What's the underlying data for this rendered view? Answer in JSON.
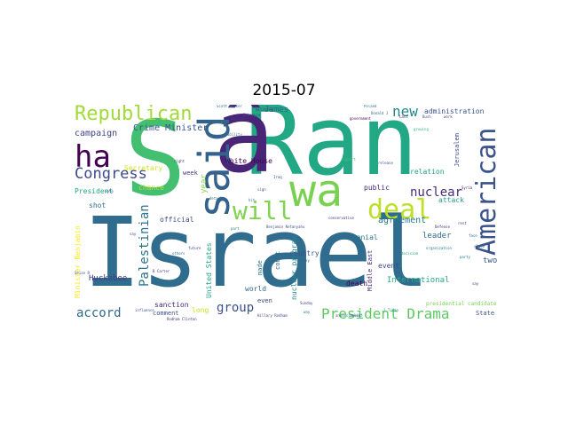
{
  "title": "2015-07",
  "words": [
    {
      "text": "Israel",
      "color": "#2f6c8e"
    },
    {
      "text": "Ran",
      "color": "#22a884"
    },
    {
      "text": "S",
      "color": "#43bf71"
    },
    {
      "text": "â",
      "color": "#482576"
    },
    {
      "text": "said",
      "color": "#33628d"
    },
    {
      "text": "wa",
      "color": "#7ad151"
    },
    {
      "text": "deal",
      "color": "#bddf26"
    },
    {
      "text": "American",
      "color": "#3b528b"
    },
    {
      "text": "will",
      "color": "#7fd34e"
    },
    {
      "text": "ha",
      "color": "#440154"
    },
    {
      "text": "Republican",
      "color": "#a2da37"
    },
    {
      "text": "Congress",
      "color": "#3e4a89"
    },
    {
      "text": "Palestinian",
      "color": "#2c728e"
    },
    {
      "text": "President Drama",
      "color": "#5ec962"
    },
    {
      "text": "accord",
      "color": "#31688e"
    },
    {
      "text": "group",
      "color": "#3b528b"
    },
    {
      "text": "nuclear",
      "color": "#472d7b"
    },
    {
      "text": "new",
      "color": "#24868e"
    },
    {
      "text": "agreement",
      "color": "#2a788e"
    },
    {
      "text": "Crime Minister",
      "color": "#3b528b"
    },
    {
      "text": "campaign",
      "color": "#414487"
    },
    {
      "text": "Secretary",
      "color": "#d2e21b"
    },
    {
      "text": "President",
      "color": "#20a386"
    },
    {
      "text": "James",
      "color": "#31688e"
    },
    {
      "text": "White House",
      "color": "#440154"
    },
    {
      "text": "administration",
      "color": "#3b528b"
    },
    {
      "text": "relation",
      "color": "#1fa188"
    },
    {
      "text": "Jerusalem",
      "color": "#3e4989"
    },
    {
      "text": "public",
      "color": "#482878"
    },
    {
      "text": "attack",
      "color": "#1f9e89"
    },
    {
      "text": "Cranial",
      "color": "#2c728e"
    },
    {
      "text": "leader",
      "color": "#31688e"
    },
    {
      "text": "International",
      "color": "#25ab82"
    },
    {
      "text": "Middle East",
      "color": "#472d7b"
    },
    {
      "text": "two",
      "color": "#3b528b"
    },
    {
      "text": "nuclear program",
      "color": "#25858e"
    },
    {
      "text": "Minister Benjamin",
      "color": "#fde725"
    },
    {
      "text": "Huckabee",
      "color": "#443983"
    },
    {
      "text": "official",
      "color": "#3e4989"
    },
    {
      "text": "sanction",
      "color": "#482878"
    },
    {
      "text": "comment",
      "color": "#3b528b"
    },
    {
      "text": "long",
      "color": "#c8e020"
    },
    {
      "text": "chance",
      "color": "#b5de2b"
    },
    {
      "text": "week",
      "color": "#443a83"
    },
    {
      "text": "year",
      "color": "#8bd646"
    },
    {
      "text": "United States",
      "color": "#20a486"
    },
    {
      "text": "made",
      "color": "#2a788e"
    },
    {
      "text": "world",
      "color": "#31688e"
    },
    {
      "text": "death",
      "color": "#440154"
    },
    {
      "text": "event",
      "color": "#3e4989"
    },
    {
      "text": "court",
      "color": "#2d708e"
    },
    {
      "text": "country",
      "color": "#3b528b"
    },
    {
      "text": "even",
      "color": "#414487"
    },
    {
      "text": "shot",
      "color": "#2c728e"
    },
    {
      "text": "State",
      "color": "#3b528b"
    },
    {
      "text": "presidential candidate",
      "color": "#7ad151"
    },
    {
      "text": "Benjamin Netanyahu",
      "color": "#3b528b"
    },
    {
      "text": "Hillary Rodham",
      "color": "#3e4989"
    },
    {
      "text": "Rodham Clinton",
      "color": "#46337e"
    },
    {
      "text": "B Carter",
      "color": "#443983"
    },
    {
      "text": "Defense",
      "color": "#482878"
    },
    {
      "text": "government",
      "color": "#440154"
    },
    {
      "text": "Donald J",
      "color": "#31688e"
    },
    {
      "text": "Poland",
      "color": "#2d708e"
    },
    {
      "text": "Scott Walker",
      "color": "#2a788e"
    },
    {
      "text": "organization",
      "color": "#26828e"
    },
    {
      "text": "growing",
      "color": "#35b779"
    },
    {
      "text": "release",
      "color": "#3b528b"
    },
    {
      "text": "support",
      "color": "#44bf70"
    },
    {
      "text": "Sunday",
      "color": "#3e4989"
    },
    {
      "text": "conservative",
      "color": "#46337e"
    },
    {
      "text": "J Trump",
      "color": "#1f9a8a"
    },
    {
      "text": "influence",
      "color": "#3b528b"
    },
    {
      "text": "Tuesday",
      "color": "#31688e"
    },
    {
      "text": "announcement",
      "color": "#2c728e"
    },
    {
      "text": "Ethiopia",
      "color": "#3e4989"
    },
    {
      "text": "military",
      "color": "#46337e"
    },
    {
      "text": "ability",
      "color": "#2a788e"
    },
    {
      "text": "Iraq",
      "color": "#3b528b"
    },
    {
      "text": "Last",
      "color": "#472d7b"
    },
    {
      "text": "party",
      "color": "#2a788e"
    },
    {
      "text": "face",
      "color": "#31688e"
    },
    {
      "text": "close",
      "color": "#2c728e"
    },
    {
      "text": "Syria",
      "color": "#481769"
    },
    {
      "text": "work",
      "color": "#3e4989"
    },
    {
      "text": "Bush",
      "color": "#3b528b"
    },
    {
      "text": "relief",
      "color": "#2d708e"
    },
    {
      "text": "right",
      "color": "#443983"
    },
    {
      "text": "police",
      "color": "#3e4989"
    },
    {
      "text": "sign",
      "color": "#3b528b"
    },
    {
      "text": "part",
      "color": "#2a788e"
    },
    {
      "text": "detail",
      "color": "#31688e"
    },
    {
      "text": "decision",
      "color": "#1f9e89"
    },
    {
      "text": "future",
      "color": "#3e4989"
    },
    {
      "text": "vote",
      "color": "#3b528b"
    },
    {
      "text": "others",
      "color": "#2c728e"
    },
    {
      "text": "Seize B",
      "color": "#3b528b"
    },
    {
      "text": "rest",
      "color": "#46337e"
    },
    {
      "text": "way",
      "color": "#2a788e"
    },
    {
      "text": "hit",
      "color": "#31688e"
    },
    {
      "text": "say",
      "color": "#3b528b"
    },
    {
      "text": "say",
      "color": "#443983"
    }
  ]
}
